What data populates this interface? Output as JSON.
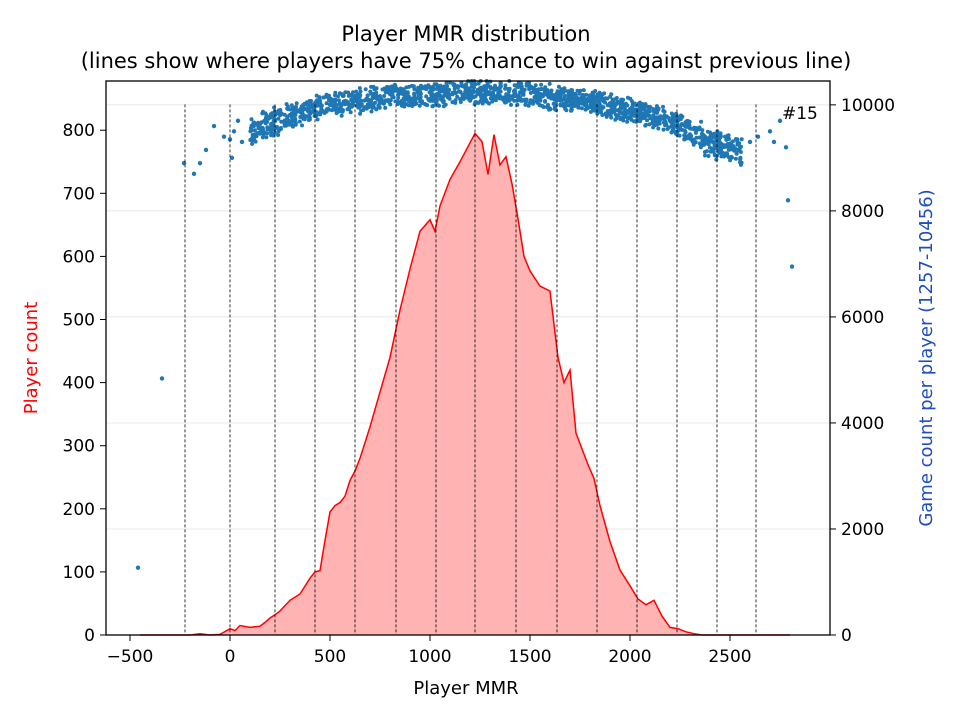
{
  "chart_data": {
    "type": "area",
    "title": "Player MMR distribution",
    "subtitle": "(lines show where players have 75% chance to win against previous line)",
    "xlabel": "Player MMR",
    "ylabel": "Player count",
    "ylabel_right": "Game count per player (1257-10456)",
    "xlim": [
      -620,
      3000
    ],
    "ylim": [
      0,
      878
    ],
    "ylim_right": [
      0,
      10450
    ],
    "xticks": [
      -500,
      0,
      500,
      1000,
      1500,
      2000,
      2500
    ],
    "yticks": [
      0,
      100,
      200,
      300,
      400,
      500,
      600,
      700,
      800
    ],
    "yticks_right": [
      0,
      2000,
      4000,
      6000,
      8000,
      10000
    ],
    "grid": "horizontal",
    "annotation": "#15",
    "colors": {
      "line": "#ff0000",
      "fill": "#ffb3b3",
      "scatter": "#1f77b4",
      "ylabel": "#ff0000",
      "ylabel_right": "#1f4fbf"
    },
    "vlines": [
      -225,
      0,
      225,
      425,
      625,
      830,
      1030,
      1225,
      1430,
      1635,
      1835,
      2035,
      2235,
      2435,
      2630
    ],
    "series": [
      {
        "type": "area",
        "x": [
          -450,
          -400,
          -350,
          -300,
          -250,
          -200,
          -150,
          -100,
          -50,
          0,
          25,
          50,
          100,
          150,
          175,
          200,
          225,
          250,
          300,
          350,
          400,
          425,
          450,
          475,
          500,
          525,
          550,
          575,
          600,
          625,
          650,
          700,
          750,
          800,
          850,
          900,
          950,
          1000,
          1025,
          1050,
          1100,
          1150,
          1200,
          1225,
          1260,
          1290,
          1320,
          1350,
          1380,
          1410,
          1440,
          1470,
          1500,
          1550,
          1600,
          1640,
          1670,
          1700,
          1730,
          1760,
          1790,
          1820,
          1850,
          1900,
          1950,
          2000,
          2040,
          2080,
          2120,
          2160,
          2200,
          2240,
          2280,
          2320,
          2360,
          2400,
          2440,
          2500,
          2600,
          2700,
          2800
        ],
        "y": [
          0,
          0,
          0,
          0,
          0,
          0,
          2,
          0,
          1,
          10,
          7,
          15,
          12,
          14,
          20,
          27,
          32,
          38,
          55,
          65,
          90,
          100,
          102,
          150,
          195,
          205,
          210,
          220,
          245,
          260,
          280,
          330,
          385,
          440,
          515,
          580,
          640,
          658,
          640,
          680,
          722,
          750,
          780,
          795,
          782,
          730,
          793,
          745,
          758,
          715,
          660,
          600,
          577,
          553,
          545,
          440,
          400,
          420,
          320,
          295,
          270,
          248,
          205,
          148,
          103,
          78,
          57,
          48,
          55,
          30,
          12,
          10,
          5,
          2,
          0,
          0,
          0,
          0,
          0,
          0,
          0
        ]
      },
      {
        "type": "scatter",
        "outliers": [
          [
            -460,
            1270
          ],
          [
            -340,
            4840
          ],
          [
            -230,
            8900
          ],
          [
            -180,
            8700
          ],
          [
            -150,
            8900
          ],
          [
            -120,
            9150
          ],
          [
            -80,
            9600
          ],
          [
            -30,
            9400
          ],
          [
            0,
            9350
          ],
          [
            10,
            9000
          ],
          [
            20,
            9500
          ],
          [
            40,
            9700
          ],
          [
            60,
            9300
          ],
          [
            2600,
            9300
          ],
          [
            2640,
            9400
          ],
          [
            2700,
            9500
          ],
          [
            2720,
            9300
          ],
          [
            2750,
            9700
          ],
          [
            2780,
            9200
          ],
          [
            2790,
            8200
          ],
          [
            2810,
            6950
          ]
        ],
        "band_center": [
          [
            100,
            9500
          ],
          [
            300,
            9800
          ],
          [
            500,
            10000
          ],
          [
            800,
            10150
          ],
          [
            1000,
            10200
          ],
          [
            1300,
            10250
          ],
          [
            1500,
            10200
          ],
          [
            1800,
            10050
          ],
          [
            2000,
            9900
          ],
          [
            2200,
            9700
          ],
          [
            2400,
            9300
          ],
          [
            2550,
            9100
          ]
        ]
      }
    ]
  }
}
